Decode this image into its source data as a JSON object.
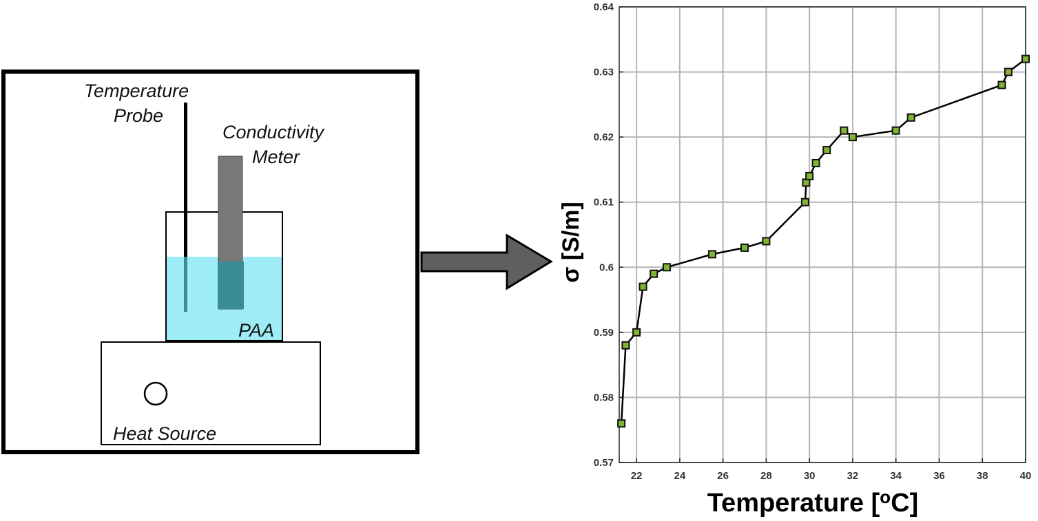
{
  "diagram": {
    "labels": {
      "probe_line1": "Temperature",
      "probe_line2": "Probe",
      "meter_line1": "Conductivity",
      "meter_line2": "Meter",
      "liquid": "PAA",
      "heater": "Heat Source"
    },
    "colors": {
      "liquid": "#9eecf6",
      "meter": "#787878",
      "meter_submerged": "#3a8c97",
      "arrow": "#5f5f5f",
      "outline": "#000000"
    }
  },
  "chart_data": {
    "type": "line",
    "xlabel": "Temperature [",
    "xlabel_sup": "o",
    "xlabel_end": "C]",
    "ylabel": "σ [S/m]",
    "xlim": [
      21.2,
      40
    ],
    "ylim": [
      0.57,
      0.64
    ],
    "xticks": [
      22,
      24,
      26,
      28,
      30,
      32,
      34,
      36,
      38,
      40
    ],
    "yticks": [
      0.57,
      0.58,
      0.59,
      0.6,
      0.61,
      0.62,
      0.63,
      0.64
    ],
    "grid": true,
    "marker": "square",
    "marker_color": "#7fb532",
    "line_color": "#000000",
    "series": [
      {
        "x": [
          21.3,
          21.5,
          22.0,
          22.3,
          22.8,
          23.4,
          25.5,
          27.0,
          28.0,
          29.8,
          29.85,
          30.0,
          30.3,
          30.8,
          31.6,
          32.0,
          34.0,
          34.7,
          38.9,
          39.2,
          40.0
        ],
        "y": [
          0.576,
          0.588,
          0.59,
          0.597,
          0.599,
          0.6,
          0.602,
          0.603,
          0.604,
          0.61,
          0.613,
          0.614,
          0.616,
          0.618,
          0.621,
          0.62,
          0.621,
          0.623,
          0.628,
          0.63,
          0.632
        ]
      }
    ]
  }
}
